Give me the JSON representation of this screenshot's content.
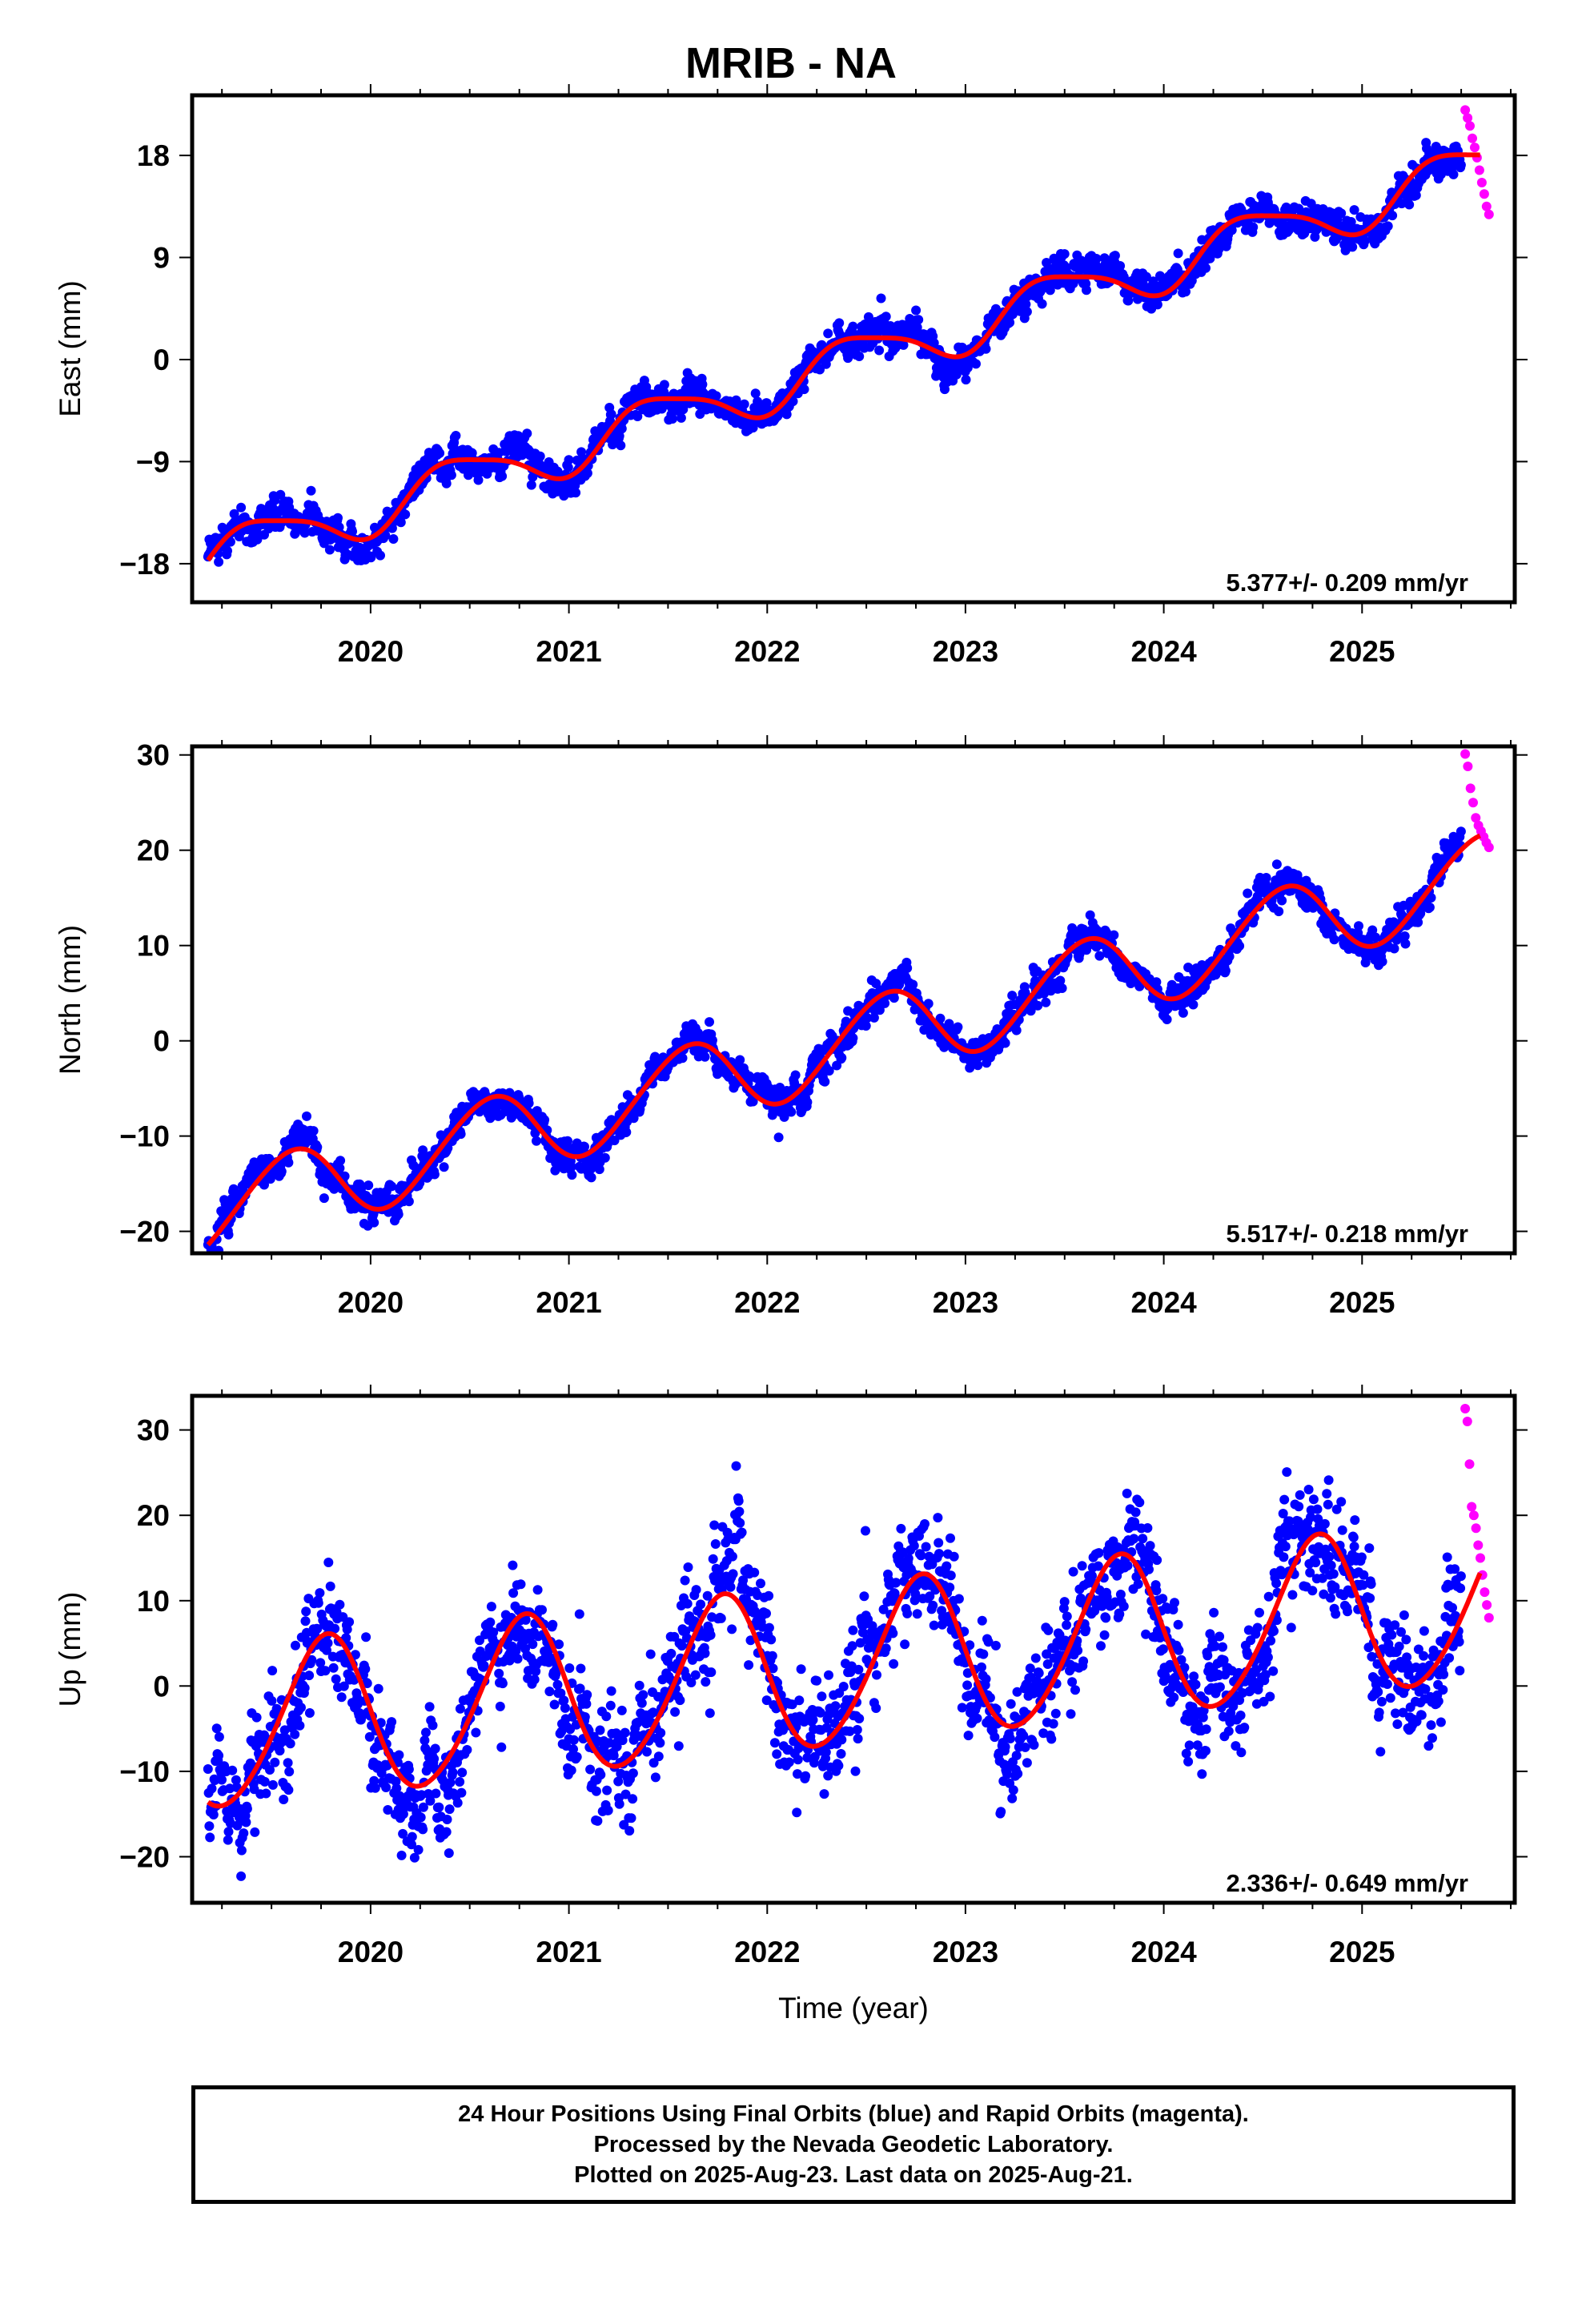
{
  "title": "MRIB - NA",
  "x_axis_label": "Time (year)",
  "colors": {
    "final_orbits": "#0000ff",
    "rapid_orbits": "#ff00ff",
    "model_fit": "#ff0000",
    "frame": "#000000"
  },
  "footer": {
    "line1": "24 Hour Positions Using Final Orbits (blue) and Rapid Orbits (magenta).",
    "line2": "Processed by the Nevada Geodetic Laboratory.",
    "line3": "Plotted on 2025-Aug-23. Last data on 2025-Aug-21."
  },
  "chart_data": [
    {
      "type": "scatter",
      "ylabel": "East (mm)",
      "xlabel": "",
      "xlim": [
        2019.1,
        2025.77
      ],
      "ylim": [
        -21.4,
        23.3
      ],
      "x_ticks": [
        2020,
        2021,
        2022,
        2023,
        2024,
        2025
      ],
      "y_ticks": [
        -18,
        -9,
        0,
        9,
        18
      ],
      "y_tick_labels": [
        "−18",
        "−9",
        "0",
        "9",
        "18"
      ],
      "grid": false,
      "velocity_label": "5.377+/- 0.209 mm/yr",
      "model": {
        "series": "Model fit (red)",
        "t0": 2019.18,
        "x_end": 2025.6,
        "offset": -17.55,
        "rate": 5.377,
        "annual": [
          {
            "cos": -0.35,
            "sin": 2.15
          }
        ],
        "semiannual": [
          {
            "cos": 0.2,
            "sin": 0.45
          }
        ]
      },
      "final_orbits": {
        "x_start": 2019.18,
        "x_end": 2025.5,
        "scatter_mm": 0.75
      },
      "rapid_orbits": {
        "x_start": 2025.52,
        "x_end": 2025.64,
        "y_values": [
          22.0,
          21.3,
          20.6,
          19.5,
          18.7,
          17.8,
          16.7,
          15.6,
          14.6,
          13.5,
          12.8
        ]
      }
    },
    {
      "type": "scatter",
      "ylabel": "North (mm)",
      "xlabel": "",
      "xlim": [
        2019.1,
        2025.77
      ],
      "ylim": [
        -22.3,
        30.9
      ],
      "x_ticks": [
        2020,
        2021,
        2022,
        2023,
        2024,
        2025
      ],
      "y_ticks": [
        -20,
        -10,
        0,
        10,
        20,
        30
      ],
      "y_tick_labels": [
        "−20",
        "−10",
        "0",
        "10",
        "20",
        "30"
      ],
      "grid": false,
      "velocity_label": "5.517+/- 0.218 mm/yr",
      "model": {
        "series": "Model fit (red)",
        "t0": 2019.18,
        "x_end": 2025.6,
        "offset": -18.1,
        "rate": 5.517,
        "annual": [
          {
            "cos": -3.6,
            "sin": 2.3
          }
        ],
        "semiannual": [
          {
            "cos": 0.3,
            "sin": 0.2
          }
        ]
      },
      "final_orbits": {
        "x_start": 2019.18,
        "x_end": 2025.5,
        "scatter_mm": 0.9
      },
      "rapid_orbits": {
        "x_start": 2025.52,
        "x_end": 2025.64,
        "y_values": [
          30.1,
          28.8,
          26.5,
          25.0,
          23.4,
          22.6,
          22.0,
          21.4,
          20.8,
          20.3
        ]
      }
    },
    {
      "type": "scatter",
      "ylabel": "Up (mm)",
      "xlabel": "Time (year)",
      "xlim": [
        2019.1,
        2025.77
      ],
      "ylim": [
        -25.4,
        34.0
      ],
      "x_ticks": [
        2020,
        2021,
        2022,
        2023,
        2024,
        2025
      ],
      "y_ticks": [
        -20,
        -10,
        0,
        10,
        20,
        30
      ],
      "y_tick_labels": [
        "−20",
        "−10",
        "0",
        "10",
        "20",
        "30"
      ],
      "grid": false,
      "velocity_label": "2.336+/- 0.649 mm/yr",
      "model": {
        "series": "Model fit (red)",
        "t0": 2019.18,
        "x_end": 2025.6,
        "offset": -5.3,
        "rate": 2.336,
        "annual": [
          {
            "cos": -8.0,
            "sin": -4.9
          }
        ],
        "semiannual": [
          {
            "cos": -0.3,
            "sin": 0.8
          }
        ]
      },
      "final_orbits": {
        "x_start": 2019.18,
        "x_end": 2025.5,
        "scatter_mm": 3.4
      },
      "rapid_orbits": {
        "x_start": 2025.52,
        "x_end": 2025.64,
        "y_values": [
          32.5,
          31.0,
          26.0,
          21.0,
          20.0,
          18.5,
          16.5,
          15.0,
          13.0,
          11.0,
          9.5,
          8.0
        ]
      }
    }
  ]
}
